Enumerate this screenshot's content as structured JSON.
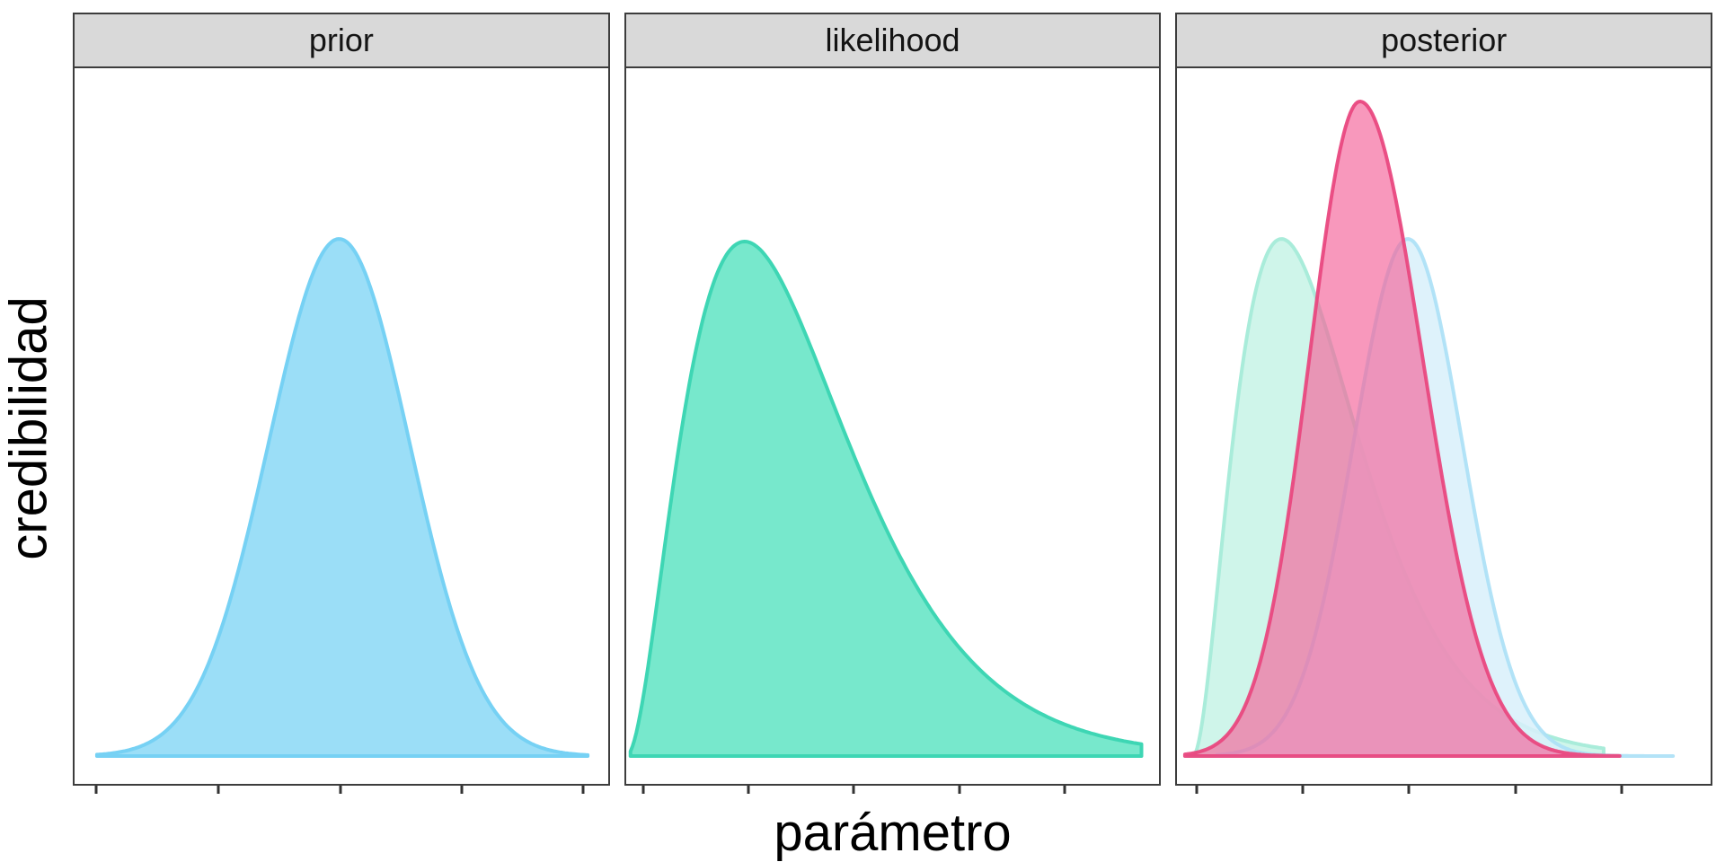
{
  "figure": {
    "background": "#ffffff",
    "strip_background": "#d9d9d9",
    "strip_border": "#3d3d3d",
    "panel_border": "#3d3d3d",
    "tick_color": "#333333",
    "text_color": "#000000"
  },
  "chart_data": {
    "type": "area",
    "title": "",
    "xlabel": "parámetro",
    "ylabel": "credibilidad",
    "legend": "none",
    "grid": "off",
    "axes": {
      "x_tick_labels": [],
      "y_tick_labels": [],
      "note": "ticks drawn without numeric labels"
    },
    "facets": [
      {
        "label": "prior",
        "ticks": [
          0.043,
          0.271,
          0.499,
          0.725,
          0.951
        ],
        "curves": [
          {
            "name": "prior",
            "dist": "normal",
            "mu": 0.496,
            "sigma": 0.132,
            "peak_credibility": 0.79,
            "x_range": [
              0.042,
              0.962
            ],
            "fill": "#9BDEF7",
            "stroke": "#76D1F4",
            "fill_opacity": 1,
            "stroke_opacity": 1
          }
        ]
      },
      {
        "label": "likelihood",
        "ticks": [
          0.035,
          0.232,
          0.427,
          0.624,
          0.82
        ],
        "curves": [
          {
            "name": "likelihood",
            "dist": "gamma",
            "origin": 0.0,
            "theta": 0.111,
            "k": 3,
            "peak_credibility": 0.786,
            "x_range": [
              0.008,
              0.966
            ],
            "fill": "#77E8CC",
            "stroke": "#3ED6B4",
            "fill_opacity": 1,
            "stroke_opacity": 1
          }
        ]
      },
      {
        "label": "posterior",
        "ticks": [
          0.04,
          0.237,
          0.435,
          0.634,
          0.831
        ],
        "curves": [
          {
            "name": "likelihood-ghost",
            "dist": "gamma",
            "origin": 0.03,
            "theta": 0.083,
            "k": 3,
            "peak_credibility": 0.79,
            "x_range": [
              0.02,
              0.8
            ],
            "fill": "#CFF5EA",
            "stroke": "#A9ECDA",
            "fill_opacity": 1,
            "stroke_opacity": 1
          },
          {
            "name": "prior-ghost",
            "dist": "normal",
            "mu": 0.433,
            "sigma": 0.102,
            "peak_credibility": 0.79,
            "x_range": [
              0.075,
              0.93
            ],
            "fill": "#D8F0FA",
            "stroke": "#ABE0F6",
            "fill_opacity": 0.85,
            "stroke_opacity": 0.9
          },
          {
            "name": "posterior",
            "dist": "skewnormal",
            "mu": 0.343,
            "sigma_left": 0.095,
            "sigma_right": 0.118,
            "peak_credibility": 1.0,
            "x_range": [
              0.015,
              0.83
            ],
            "fill": "#F5639A",
            "stroke": "#E9487F",
            "fill_opacity": 0.66,
            "stroke_opacity": 0.95
          }
        ]
      }
    ]
  }
}
